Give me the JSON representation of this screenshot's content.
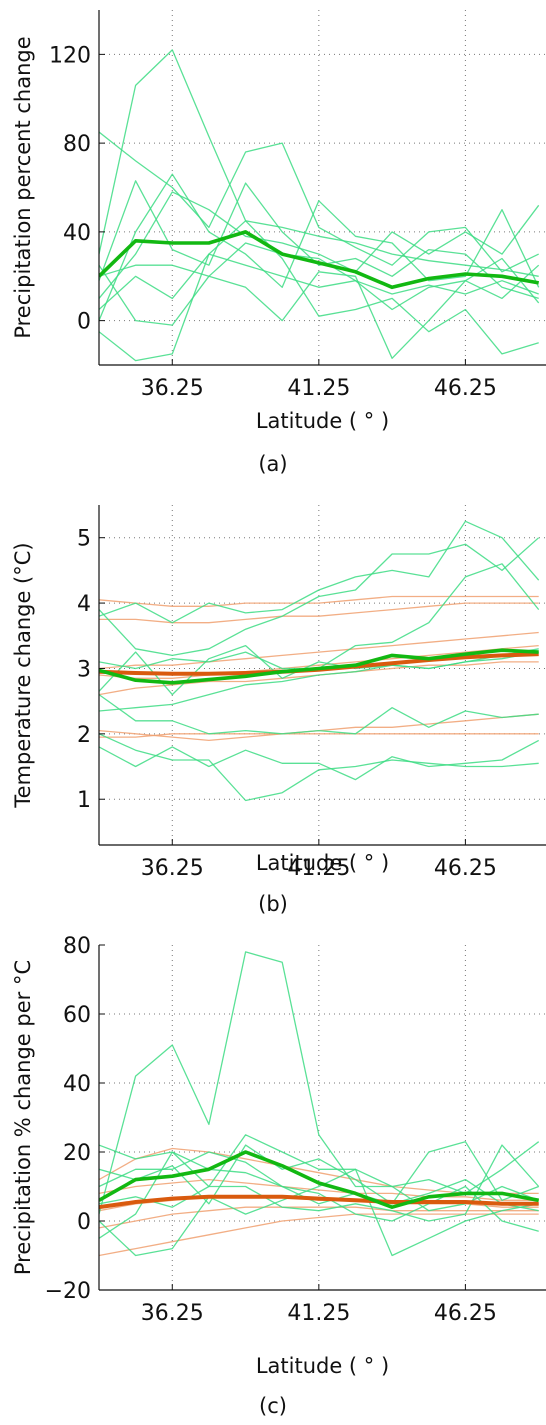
{
  "colors": {
    "ensemble_member": "#3ddc84",
    "ensemble_mean": "#12b812",
    "scaled_member": "#f0a070",
    "scaled_mean": "#d95a0e"
  },
  "chart_data": [
    {
      "type": "line",
      "caption": "(a)",
      "xlabel": "Latitude ( ° )",
      "ylabel": "Precipitation percent change",
      "xlim": [
        33.75,
        49.0
      ],
      "ylim": [
        -20,
        140
      ],
      "xticks": [
        36.25,
        41.25,
        46.25
      ],
      "xtick_labels": [
        "36.25",
        "41.25",
        "46.25"
      ],
      "yticks": [
        0,
        40,
        80,
        120
      ],
      "ytick_labels": [
        "0",
        "40",
        "80",
        "120"
      ],
      "grid": true,
      "x": [
        33.75,
        35.0,
        36.25,
        37.5,
        38.75,
        40.0,
        41.25,
        42.5,
        43.75,
        45.0,
        46.25,
        47.5,
        48.75
      ],
      "series": [
        {
          "role": "member",
          "values": [
            30,
            106,
            122,
            83,
            45,
            42,
            38,
            35,
            30,
            27,
            25,
            23,
            20
          ]
        },
        {
          "role": "member",
          "values": [
            85,
            72,
            60,
            42,
            76,
            80,
            42,
            33,
            25,
            40,
            42,
            22,
            30
          ]
        },
        {
          "role": "member",
          "values": [
            18,
            63,
            32,
            25,
            62,
            40,
            25,
            28,
            20,
            32,
            30,
            15,
            10
          ]
        },
        {
          "role": "member",
          "values": [
            0,
            40,
            66,
            40,
            30,
            15,
            54,
            38,
            35,
            18,
            20,
            50,
            15
          ]
        },
        {
          "role": "member",
          "values": [
            10,
            30,
            58,
            50,
            38,
            35,
            30,
            22,
            40,
            30,
            40,
            30,
            52
          ]
        },
        {
          "role": "member",
          "values": [
            20,
            25,
            25,
            20,
            35,
            30,
            28,
            18,
            12,
            16,
            12,
            18,
            12
          ]
        },
        {
          "role": "member",
          "values": [
            -5,
            -18,
            -15,
            30,
            25,
            20,
            15,
            18,
            5,
            15,
            18,
            10,
            25
          ]
        },
        {
          "role": "member",
          "values": [
            25,
            0,
            -2,
            20,
            15,
            0,
            22,
            20,
            -17,
            0,
            18,
            28,
            8
          ]
        },
        {
          "role": "member",
          "values": [
            5,
            20,
            10,
            30,
            45,
            28,
            2,
            5,
            10,
            -5,
            5,
            -15,
            -10
          ]
        },
        {
          "role": "mean",
          "values": [
            20,
            36,
            35,
            35,
            40,
            30,
            26,
            22,
            15,
            19,
            21,
            20,
            17
          ]
        }
      ]
    },
    {
      "type": "line",
      "caption": "(b)",
      "xlabel": "Latitude ( ° )",
      "ylabel": "Temperature change (°C)",
      "xlim": [
        33.75,
        49.0
      ],
      "ylim": [
        0.3,
        5.5
      ],
      "xticks": [
        36.25,
        41.25,
        46.25
      ],
      "xtick_labels": [
        "36.25",
        "41.25",
        "46.25"
      ],
      "yticks": [
        1,
        2,
        3,
        4,
        5
      ],
      "ytick_labels": [
        "1",
        "2",
        "3",
        "4",
        "5"
      ],
      "grid": true,
      "x": [
        33.75,
        35.0,
        36.25,
        37.5,
        38.75,
        40.0,
        41.25,
        42.5,
        43.75,
        45.0,
        46.25,
        47.5,
        48.75
      ],
      "series": [
        {
          "role": "scaled_member",
          "values": [
            4.05,
            4.0,
            3.95,
            3.95,
            4.0,
            4.0,
            4.0,
            4.05,
            4.1,
            4.1,
            4.1,
            4.1,
            4.1
          ]
        },
        {
          "role": "scaled_member",
          "values": [
            3.75,
            3.75,
            3.7,
            3.7,
            3.75,
            3.8,
            3.8,
            3.85,
            3.9,
            3.95,
            4.0,
            4.0,
            4.0
          ]
        },
        {
          "role": "scaled_member",
          "values": [
            3.0,
            3.05,
            3.05,
            3.1,
            3.15,
            3.2,
            3.25,
            3.3,
            3.35,
            3.4,
            3.45,
            3.5,
            3.55
          ]
        },
        {
          "role": "scaled_member",
          "values": [
            2.9,
            2.85,
            2.85,
            2.9,
            2.95,
            3.0,
            3.05,
            3.1,
            3.15,
            3.2,
            3.25,
            3.3,
            3.35
          ]
        },
        {
          "role": "scaled_member",
          "values": [
            2.6,
            2.7,
            2.75,
            2.8,
            2.8,
            2.85,
            2.9,
            2.95,
            3.0,
            3.05,
            3.05,
            3.1,
            3.1
          ]
        },
        {
          "role": "scaled_member",
          "values": [
            2.05,
            2.0,
            1.95,
            1.9,
            1.95,
            2.0,
            2.05,
            2.1,
            2.1,
            2.15,
            2.2,
            2.25,
            2.3
          ]
        },
        {
          "role": "scaled_member",
          "values": [
            1.95,
            1.95,
            2.0,
            2.0,
            2.0,
            2.0,
            2.0,
            2.0,
            2.0,
            2.0,
            2.0,
            2.0,
            2.0
          ]
        },
        {
          "role": "member",
          "values": [
            3.9,
            3.3,
            3.2,
            3.3,
            3.6,
            3.8,
            4.1,
            4.2,
            4.75,
            4.75,
            4.9,
            4.5,
            5.0
          ]
        },
        {
          "role": "member",
          "values": [
            3.8,
            4.0,
            3.7,
            4.0,
            3.85,
            3.9,
            4.2,
            4.4,
            4.5,
            4.4,
            5.25,
            5.0,
            4.35
          ]
        },
        {
          "role": "member",
          "values": [
            3.1,
            3.0,
            3.15,
            3.1,
            3.25,
            3.0,
            3.0,
            3.35,
            3.4,
            3.7,
            4.4,
            4.6,
            3.9
          ]
        },
        {
          "role": "member",
          "values": [
            2.65,
            3.25,
            2.6,
            3.15,
            3.35,
            2.85,
            3.1,
            3.0,
            3.05,
            3.0,
            3.1,
            3.2,
            3.3
          ]
        },
        {
          "role": "member",
          "values": [
            2.35,
            2.4,
            2.45,
            2.6,
            2.75,
            2.8,
            2.9,
            2.95,
            3.05,
            3.0,
            3.1,
            3.15,
            3.25
          ]
        },
        {
          "role": "member",
          "values": [
            2.6,
            2.2,
            2.2,
            2.0,
            2.05,
            2.0,
            2.05,
            2.0,
            2.4,
            2.1,
            2.35,
            2.25,
            2.3
          ]
        },
        {
          "role": "member",
          "values": [
            1.8,
            1.5,
            1.8,
            1.5,
            1.75,
            1.55,
            1.55,
            1.3,
            1.65,
            1.5,
            1.55,
            1.6,
            1.9
          ]
        },
        {
          "role": "member",
          "values": [
            2.0,
            1.75,
            1.6,
            1.6,
            0.98,
            1.1,
            1.45,
            1.5,
            1.6,
            1.55,
            1.5,
            1.5,
            1.55
          ]
        },
        {
          "role": "scaled_mean",
          "values": [
            2.95,
            2.93,
            2.92,
            2.92,
            2.93,
            2.95,
            2.98,
            3.03,
            3.08,
            3.13,
            3.17,
            3.2,
            3.22
          ]
        },
        {
          "role": "mean",
          "values": [
            2.97,
            2.82,
            2.78,
            2.83,
            2.88,
            2.95,
            3.0,
            3.05,
            3.2,
            3.15,
            3.22,
            3.28,
            3.25
          ]
        }
      ]
    },
    {
      "type": "line",
      "caption": "(c)",
      "xlabel": "Latitude ( ° )",
      "ylabel": "Precipitation % change per °C",
      "xlim": [
        33.75,
        49.0
      ],
      "ylim": [
        -20,
        80
      ],
      "xticks": [
        36.25,
        41.25,
        46.25
      ],
      "xtick_labels": [
        "36.25",
        "41.25",
        "46.25"
      ],
      "yticks": [
        -20,
        0,
        20,
        40,
        60,
        80
      ],
      "ytick_labels": [
        "−20",
        "0",
        "20",
        "40",
        "60",
        "80"
      ],
      "grid": true,
      "x": [
        33.75,
        35.0,
        36.25,
        37.5,
        38.75,
        40.0,
        41.25,
        42.5,
        43.75,
        45.0,
        46.25,
        47.5,
        48.75
      ],
      "series": [
        {
          "role": "scaled_member",
          "values": [
            12,
            18,
            21,
            20,
            18,
            16,
            14,
            12,
            10,
            9,
            8,
            8,
            8
          ]
        },
        {
          "role": "scaled_member",
          "values": [
            8,
            10,
            11,
            12,
            11,
            10,
            9,
            8,
            8,
            7,
            7,
            6,
            6
          ]
        },
        {
          "role": "scaled_member",
          "values": [
            3,
            5,
            6,
            7,
            7,
            7,
            6,
            6,
            5,
            5,
            5,
            4,
            4
          ]
        },
        {
          "role": "scaled_member",
          "values": [
            -2,
            0,
            2,
            3,
            4,
            4,
            4,
            4,
            3,
            3,
            3,
            3,
            3
          ]
        },
        {
          "role": "scaled_member",
          "values": [
            -10,
            -8,
            -6,
            -4,
            -2,
            0,
            1,
            2,
            2,
            2,
            2,
            2,
            2
          ]
        },
        {
          "role": "member",
          "values": [
            2,
            42,
            51,
            28,
            78,
            75,
            25,
            10,
            10,
            3,
            5,
            10,
            6
          ]
        },
        {
          "role": "member",
          "values": [
            22,
            18,
            20,
            10,
            25,
            20,
            15,
            15,
            10,
            12,
            8,
            15,
            23
          ]
        },
        {
          "role": "member",
          "values": [
            15,
            12,
            16,
            5,
            22,
            15,
            18,
            12,
            5,
            8,
            12,
            5,
            3
          ]
        },
        {
          "role": "member",
          "values": [
            10,
            15,
            15,
            20,
            17,
            10,
            5,
            8,
            5,
            20,
            23,
            6,
            10
          ]
        },
        {
          "role": "member",
          "values": [
            5,
            7,
            4,
            10,
            10,
            4,
            3,
            5,
            3,
            0,
            2,
            22,
            10
          ]
        },
        {
          "role": "member",
          "values": [
            0,
            -10,
            -8,
            7,
            2,
            6,
            10,
            15,
            -10,
            -5,
            0,
            3,
            5
          ]
        },
        {
          "role": "member",
          "values": [
            -5,
            2,
            20,
            15,
            14,
            10,
            8,
            2,
            0,
            5,
            10,
            0,
            -3
          ]
        },
        {
          "role": "scaled_mean",
          "values": [
            4,
            5.5,
            6.5,
            7,
            7,
            7,
            6.5,
            6,
            5.5,
            5.5,
            5.5,
            5,
            5
          ]
        },
        {
          "role": "mean",
          "values": [
            6,
            12,
            13,
            15,
            20,
            16,
            11,
            8,
            4,
            7,
            8,
            8,
            6
          ]
        }
      ]
    }
  ]
}
